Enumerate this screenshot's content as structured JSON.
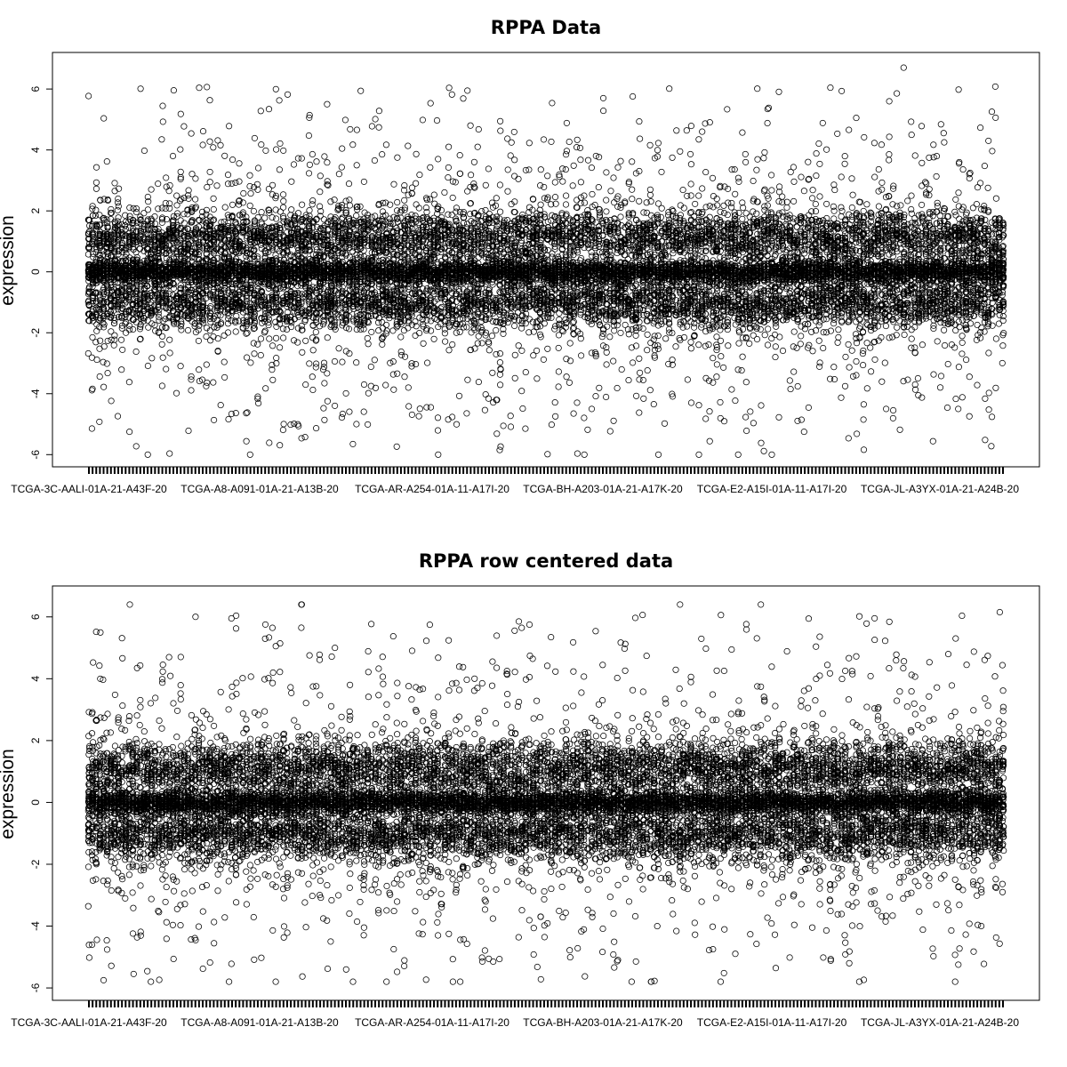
{
  "chart_data": [
    {
      "type": "scatter",
      "title": "RPPA Data",
      "xlabel": "",
      "ylabel": "expression",
      "ylim": [
        -6.4,
        7.2
      ],
      "yticks": [
        -6,
        -4,
        -2,
        0,
        2,
        4,
        6
      ],
      "x_tick_labels": [
        "TCGA-3C-AALI-01A-21-A43F-20",
        "TCGA-A8-A091-01A-21-A13B-20",
        "TCGA-AR-A254-01A-11-A17I-20",
        "TCGA-BH-A203-01A-21-A17K-20",
        "TCGA-E2-A15I-01A-11-A17I-20",
        "TCGA-JL-A3YX-01A-21-A24B-20"
      ],
      "n_samples": 250,
      "grid": false,
      "series": [
        {
          "points_per_sample": 60,
          "center": 0.0,
          "upper_band": 1.1,
          "lower_band": -1.0,
          "max": 6.7,
          "min": -6.0
        }
      ]
    },
    {
      "type": "scatter",
      "title": "RPPA row centered data",
      "xlabel": "",
      "ylabel": "expression",
      "ylim": [
        -6.4,
        7.0
      ],
      "yticks": [
        -6,
        -4,
        -2,
        0,
        2,
        4,
        6
      ],
      "x_tick_labels": [
        "TCGA-3C-AALI-01A-21-A43F-20",
        "TCGA-A8-A091-01A-21-A13B-20",
        "TCGA-AR-A254-01A-11-A17I-20",
        "TCGA-BH-A203-01A-21-A17K-20",
        "TCGA-E2-A15I-01A-11-A17I-20",
        "TCGA-JL-A3YX-01A-21-A24B-20"
      ],
      "n_samples": 250,
      "grid": false,
      "series": [
        {
          "points_per_sample": 60,
          "center": 0.0,
          "upper_band": 1.1,
          "lower_band": -1.0,
          "max": 6.4,
          "min": -5.8
        }
      ]
    }
  ]
}
